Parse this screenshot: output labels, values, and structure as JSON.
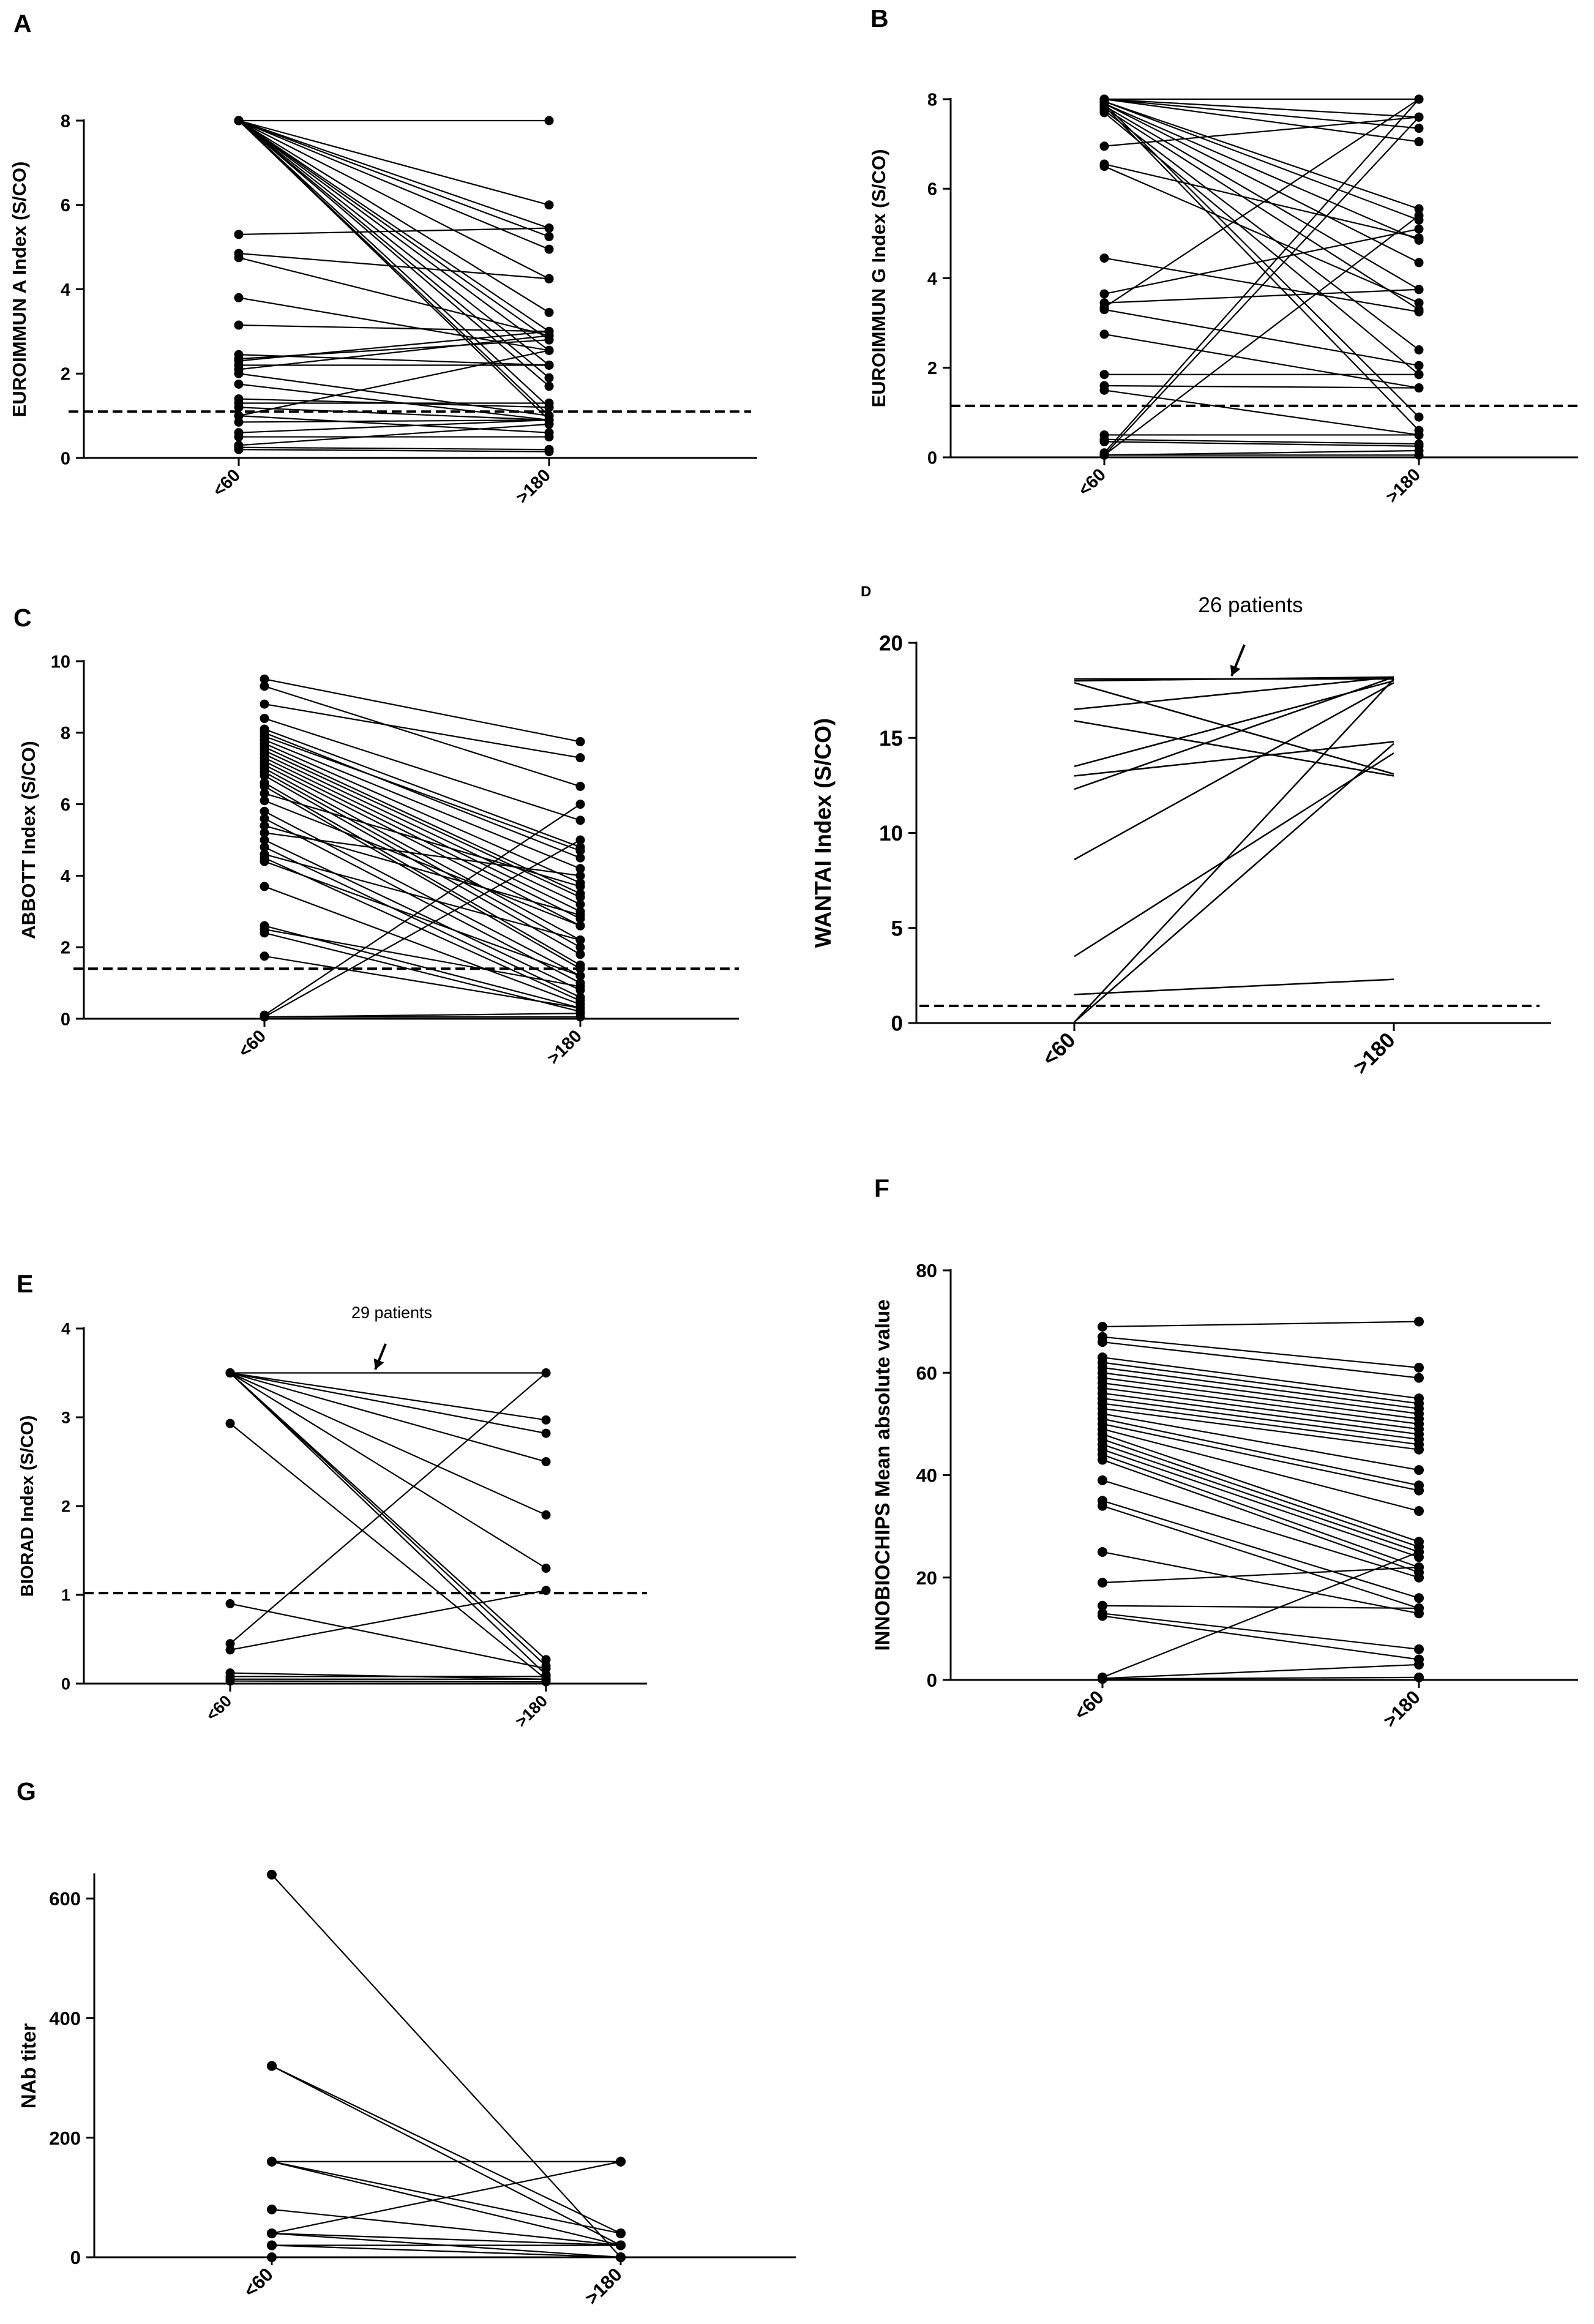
{
  "chart_data": [
    {
      "panel": "A",
      "type": "line",
      "ylabel": "EUROIMMUN A Index (S/CO)",
      "categories": [
        "<60",
        ">180"
      ],
      "ylim": [
        0,
        8
      ],
      "yticks": [
        0,
        2,
        4,
        6,
        8
      ],
      "cutoff": 1.1,
      "series": [
        [
          8.0,
          8.0
        ],
        [
          8.0,
          6.0
        ],
        [
          8.0,
          5.45
        ],
        [
          8.0,
          5.25
        ],
        [
          8.0,
          4.95
        ],
        [
          8.0,
          4.25
        ],
        [
          8.0,
          3.45
        ],
        [
          8.0,
          3.0
        ],
        [
          8.0,
          2.8
        ],
        [
          8.0,
          2.55
        ],
        [
          8.0,
          2.2
        ],
        [
          8.0,
          1.9
        ],
        [
          8.0,
          1.7
        ],
        [
          8.0,
          1.2
        ],
        [
          8.0,
          1.0
        ],
        [
          8.0,
          0.9
        ],
        [
          5.3,
          5.45
        ],
        [
          4.85,
          4.25
        ],
        [
          4.75,
          2.9
        ],
        [
          3.8,
          2.55
        ],
        [
          3.15,
          3.0
        ],
        [
          2.45,
          2.2
        ],
        [
          2.35,
          2.8
        ],
        [
          2.3,
          3.0
        ],
        [
          2.2,
          2.2
        ],
        [
          2.1,
          2.9
        ],
        [
          2.0,
          1.0
        ],
        [
          1.75,
          0.9
        ],
        [
          1.4,
          1.2
        ],
        [
          1.3,
          1.3
        ],
        [
          1.2,
          0.9
        ],
        [
          1.0,
          2.55
        ],
        [
          1.0,
          0.6
        ],
        [
          0.85,
          0.9
        ],
        [
          0.6,
          0.9
        ],
        [
          0.5,
          0.5
        ],
        [
          0.3,
          0.8
        ],
        [
          0.25,
          0.2
        ],
        [
          0.2,
          0.15
        ]
      ]
    },
    {
      "panel": "B",
      "type": "line",
      "ylabel": "EUROIMMUN G Index (S/CO)",
      "categories": [
        "<60",
        ">180"
      ],
      "ylim": [
        0,
        8
      ],
      "yticks": [
        0,
        2,
        4,
        6,
        8
      ],
      "cutoff": 1.15,
      "series": [
        [
          8.0,
          8.0
        ],
        [
          8.0,
          7.6
        ],
        [
          8.0,
          7.35
        ],
        [
          8.0,
          7.05
        ],
        [
          7.95,
          5.55
        ],
        [
          7.95,
          5.3
        ],
        [
          7.9,
          4.85
        ],
        [
          7.9,
          4.35
        ],
        [
          7.85,
          3.75
        ],
        [
          7.8,
          3.3
        ],
        [
          7.75,
          2.4
        ],
        [
          7.7,
          1.85
        ],
        [
          7.85,
          0.6
        ],
        [
          7.9,
          0.9
        ],
        [
          6.95,
          7.6
        ],
        [
          6.55,
          4.9
        ],
        [
          6.5,
          3.45
        ],
        [
          4.45,
          3.25
        ],
        [
          3.65,
          5.1
        ],
        [
          3.45,
          3.75
        ],
        [
          3.35,
          8.0
        ],
        [
          3.3,
          2.05
        ],
        [
          2.75,
          1.55
        ],
        [
          1.85,
          1.85
        ],
        [
          1.6,
          1.55
        ],
        [
          1.5,
          0.5
        ],
        [
          0.5,
          0.5
        ],
        [
          0.4,
          0.3
        ],
        [
          0.35,
          0.25
        ],
        [
          0.1,
          8.0
        ],
        [
          0.05,
          7.6
        ],
        [
          0.05,
          5.4
        ],
        [
          0.05,
          0.05
        ],
        [
          0.05,
          0.15
        ]
      ]
    },
    {
      "panel": "C",
      "type": "line",
      "ylabel": "ABBOTT Index (S/CO)",
      "categories": [
        "<60",
        ">180"
      ],
      "ylim": [
        0,
        10
      ],
      "yticks": [
        0,
        2,
        4,
        6,
        8,
        10
      ],
      "cutoff": 1.4,
      "series": [
        [
          9.5,
          7.75
        ],
        [
          9.3,
          6.5
        ],
        [
          8.8,
          7.3
        ],
        [
          8.4,
          5.55
        ],
        [
          8.1,
          4.8
        ],
        [
          8.0,
          4.5
        ],
        [
          7.9,
          4.7
        ],
        [
          7.8,
          4.2
        ],
        [
          7.7,
          3.8
        ],
        [
          7.6,
          3.5
        ],
        [
          7.5,
          3.4
        ],
        [
          7.4,
          3.2
        ],
        [
          7.3,
          3.0
        ],
        [
          7.2,
          2.8
        ],
        [
          7.1,
          2.6
        ],
        [
          7.0,
          2.2
        ],
        [
          6.9,
          2.0
        ],
        [
          6.8,
          1.8
        ],
        [
          6.6,
          1.5
        ],
        [
          6.5,
          1.4
        ],
        [
          6.3,
          3.7
        ],
        [
          6.1,
          2.6
        ],
        [
          5.8,
          1.2
        ],
        [
          5.6,
          1.0
        ],
        [
          5.4,
          2.9
        ],
        [
          5.2,
          4.0
        ],
        [
          5.0,
          0.8
        ],
        [
          4.8,
          0.6
        ],
        [
          4.6,
          2.2
        ],
        [
          4.5,
          0.5
        ],
        [
          4.4,
          1.2
        ],
        [
          3.7,
          0.4
        ],
        [
          2.6,
          0.3
        ],
        [
          2.5,
          0.9
        ],
        [
          2.4,
          0.2
        ],
        [
          1.75,
          0.3
        ],
        [
          0.1,
          6.0
        ],
        [
          0.05,
          5.0
        ],
        [
          0.05,
          0.15
        ],
        [
          0.05,
          0.05
        ]
      ]
    },
    {
      "panel": "D",
      "type": "line",
      "markers": false,
      "ylabel": "WANTAI Index (S/CO)",
      "categories": [
        "<60",
        ">180"
      ],
      "ylim": [
        0,
        20
      ],
      "yticks": [
        0,
        5,
        10,
        15,
        20
      ],
      "cutoff": 0.9,
      "annotation": "26 patients",
      "series": [
        [
          18.1,
          18.1
        ],
        [
          18.0,
          18.2
        ],
        [
          17.9,
          13.1
        ],
        [
          16.5,
          18.2
        ],
        [
          15.9,
          13.0
        ],
        [
          13.5,
          18.0
        ],
        [
          13.0,
          14.8
        ],
        [
          12.3,
          18.2
        ],
        [
          8.6,
          17.9
        ],
        [
          3.5,
          14.2
        ],
        [
          1.5,
          2.3
        ],
        [
          0.05,
          18.1
        ],
        [
          0.05,
          14.7
        ]
      ]
    },
    {
      "panel": "E",
      "type": "line",
      "ylabel": "BIORAD Index (S/CO)",
      "categories": [
        "<60",
        ">180"
      ],
      "ylim": [
        0,
        4
      ],
      "yticks": [
        0,
        1,
        2,
        3,
        4
      ],
      "cutoff": 1.02,
      "annotation": "29 patients",
      "series": [
        [
          3.5,
          3.5
        ],
        [
          3.5,
          2.97
        ],
        [
          3.5,
          2.82
        ],
        [
          3.5,
          2.5
        ],
        [
          3.5,
          1.9
        ],
        [
          3.5,
          1.3
        ],
        [
          3.5,
          0.27
        ],
        [
          3.5,
          0.2
        ],
        [
          3.5,
          0.1
        ],
        [
          2.93,
          0.05
        ],
        [
          0.9,
          0.17
        ],
        [
          0.45,
          3.5
        ],
        [
          0.38,
          1.05
        ],
        [
          0.12,
          0.05
        ],
        [
          0.08,
          0.08
        ],
        [
          0.05,
          0.05
        ],
        [
          0.03,
          0.02
        ]
      ]
    },
    {
      "panel": "F",
      "type": "line",
      "ylabel": "INNOBIOCHIPS Mean absolute value",
      "categories": [
        "<60",
        ">180"
      ],
      "ylim": [
        0,
        80
      ],
      "yticks": [
        0,
        20,
        40,
        60,
        80
      ],
      "series": [
        [
          69.0,
          70.0
        ],
        [
          67.0,
          61.0
        ],
        [
          66.0,
          59.0
        ],
        [
          63.0,
          55.0
        ],
        [
          62.0,
          54.0
        ],
        [
          61.0,
          53.0
        ],
        [
          60.0,
          52.0
        ],
        [
          59.0,
          51.0
        ],
        [
          58.0,
          50.0
        ],
        [
          57.0,
          49.0
        ],
        [
          56.0,
          48.0
        ],
        [
          55.0,
          47.0
        ],
        [
          54.0,
          46.0
        ],
        [
          53.0,
          45.0
        ],
        [
          52.0,
          41.0
        ],
        [
          51.0,
          38.0
        ],
        [
          50.0,
          37.0
        ],
        [
          49.0,
          33.0
        ],
        [
          48.0,
          27.0
        ],
        [
          47.0,
          26.0
        ],
        [
          46.0,
          25.0
        ],
        [
          45.0,
          24.0
        ],
        [
          44.0,
          22.0
        ],
        [
          43.0,
          21.0
        ],
        [
          39.0,
          20.0
        ],
        [
          35.0,
          16.0
        ],
        [
          34.0,
          14.0
        ],
        [
          25.0,
          13.0
        ],
        [
          19.0,
          22.0
        ],
        [
          14.5,
          14.0
        ],
        [
          13.0,
          6.0
        ],
        [
          12.5,
          4.0
        ],
        [
          0.5,
          25.0
        ],
        [
          0.3,
          3.0
        ],
        [
          0.2,
          0.5
        ]
      ]
    },
    {
      "panel": "G",
      "type": "line",
      "ylabel": "NAb titer",
      "categories": [
        "<60",
        ">180"
      ],
      "ylim": [
        0,
        640
      ],
      "yticks": [
        0,
        200,
        400,
        600
      ],
      "series": [
        [
          640,
          0
        ],
        [
          320,
          40
        ],
        [
          320,
          20
        ],
        [
          160,
          160
        ],
        [
          160,
          40
        ],
        [
          160,
          20
        ],
        [
          80,
          20
        ],
        [
          40,
          160
        ],
        [
          40,
          20
        ],
        [
          40,
          0
        ],
        [
          20,
          0
        ],
        [
          20,
          20
        ],
        [
          0,
          0
        ]
      ]
    }
  ]
}
